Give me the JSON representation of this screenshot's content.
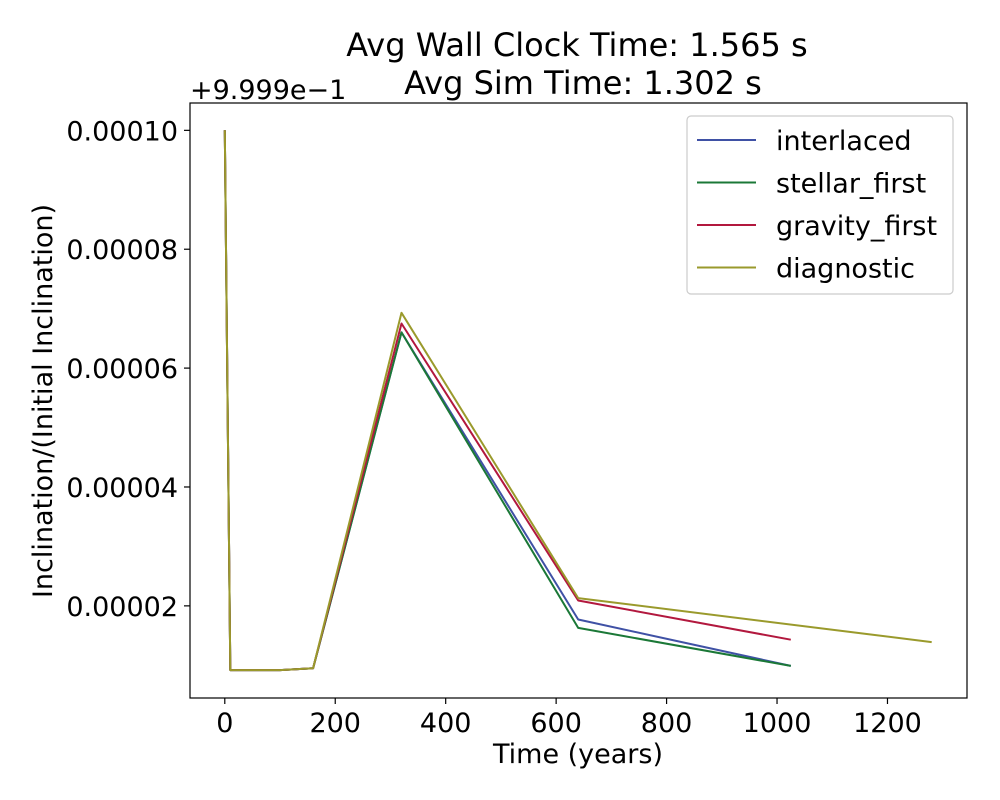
{
  "chart_data": {
    "type": "line",
    "title_line1": "Avg Wall Clock Time: 1.565 s",
    "title_line2": "Avg Sim Time: 1.302 s",
    "xlabel": "Time (years)",
    "ylabel": "Inclination/(Initial Inclination)",
    "offset_text": "+9.999e−1",
    "xlim": [
      -63,
      1344
    ],
    "ylim": [
      4.5e-06,
      0.0001046
    ],
    "x_ticks": [
      0,
      200,
      400,
      600,
      800,
      1000,
      1200
    ],
    "x_tick_labels": [
      "0",
      "200",
      "400",
      "600",
      "800",
      "1000",
      "1200"
    ],
    "y_ticks": [
      2e-05,
      4e-05,
      6e-05,
      8e-05,
      0.0001
    ],
    "y_tick_labels": [
      "0.00002",
      "0.00004",
      "0.00006",
      "0.00008",
      "0.00010"
    ],
    "grid": false,
    "legend_position": "top-right",
    "series": [
      {
        "name": "interlaced",
        "color": "#3f51a5",
        "x": [
          0,
          10,
          100,
          160,
          320,
          640,
          1025
        ],
        "y": [
          0.0001,
          9.2e-06,
          9.2e-06,
          9.5e-06,
          6.6e-05,
          1.77e-05,
          9.9e-06
        ]
      },
      {
        "name": "stellar_first",
        "color": "#1b7837",
        "x": [
          0,
          10,
          100,
          160,
          320,
          640,
          1025
        ],
        "y": [
          0.0001,
          9.2e-06,
          9.2e-06,
          9.5e-06,
          6.6e-05,
          1.63e-05,
          9.9e-06
        ]
      },
      {
        "name": "gravity_first",
        "color": "#b2183e",
        "x": [
          0,
          10,
          100,
          160,
          320,
          640,
          1025
        ],
        "y": [
          0.0001,
          9.2e-06,
          9.2e-06,
          9.5e-06,
          6.75e-05,
          2.09e-05,
          1.43e-05
        ]
      },
      {
        "name": "diagnostic",
        "color": "#9a9a2c",
        "x": [
          0,
          10,
          100,
          160,
          320,
          640,
          1280
        ],
        "y": [
          0.0001,
          9.2e-06,
          9.2e-06,
          9.5e-06,
          6.93e-05,
          2.13e-05,
          1.39e-05
        ]
      }
    ]
  }
}
